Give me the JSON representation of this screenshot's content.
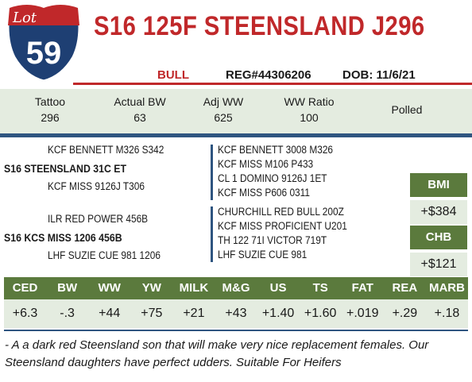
{
  "lot": {
    "label": "Lot",
    "number": "59"
  },
  "title": "S16 125F STEENSLAND J296",
  "subline": {
    "sex": "BULL",
    "reg": "REG#44306206",
    "dob": "DOB: 11/6/21"
  },
  "stats": [
    {
      "label": "Tattoo",
      "value": "296"
    },
    {
      "label": "Actual BW",
      "value": "63"
    },
    {
      "label": "Adj WW",
      "value": "625"
    },
    {
      "label": "WW Ratio",
      "value": "100"
    },
    {
      "label": "Polled",
      "value": ""
    }
  ],
  "pedigree": {
    "sire_side": {
      "sire_sire": "KCF BENNETT M326 S342",
      "sire": "S16 STEENSLAND 31C ET",
      "sire_dam": "KCF MISS 9126J T306",
      "gg": [
        "KCF BENNETT 3008 M326",
        "KCF MISS M106 P433",
        "CL 1 DOMINO 9126J 1ET",
        "KCF MISS P606 0311"
      ]
    },
    "dam_side": {
      "dam_sire": "ILR RED POWER 456B",
      "dam": "S16 KCS MISS 1206 456B",
      "dam_dam": "LHF SUZIE CUE 981 1206",
      "gg": [
        "CHURCHILL RED BULL 200Z",
        "KCF MISS PROFICIENT U201",
        "TH 122 71I VICTOR 719T",
        "LHF SUZIE CUE 981"
      ]
    }
  },
  "indexes": [
    {
      "label": "BMI",
      "value": "+$384"
    },
    {
      "label": "CHB",
      "value": "+$121"
    }
  ],
  "epds": {
    "headers": [
      "CED",
      "BW",
      "WW",
      "YW",
      "MILK",
      "M&G",
      "US",
      "TS",
      "FAT",
      "REA",
      "MARB"
    ],
    "values": [
      "+6.3",
      "-.3",
      "+44",
      "+75",
      "+21",
      "+43",
      "+1.40",
      "+1.60",
      "+.019",
      "+.29",
      "+.18"
    ]
  },
  "notes": "- A a dark red Steensland son that will make very nice replacement females. Our Steensland daughters have perfect udders. Suitable For Heifers",
  "colors": {
    "red": "#c0282a",
    "blue": "#2f5580",
    "green": "#5b7a3d",
    "light": "#e4ece0"
  }
}
